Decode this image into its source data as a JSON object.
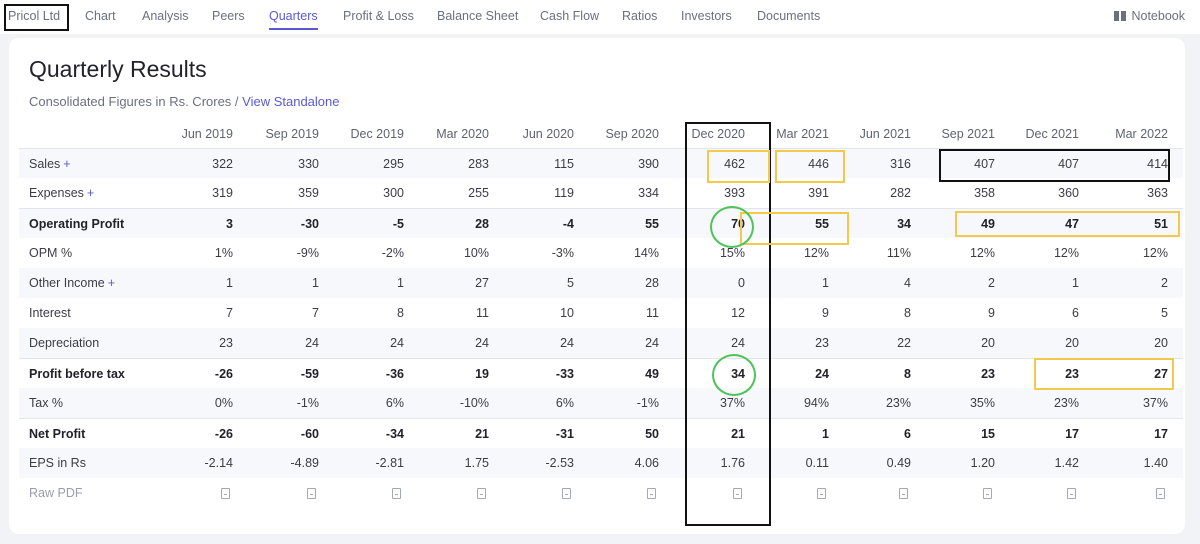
{
  "nav": {
    "brand": "Pricol Ltd",
    "items": [
      "Chart",
      "Analysis",
      "Peers",
      "Quarters",
      "Profit & Loss",
      "Balance Sheet",
      "Cash Flow",
      "Ratios",
      "Investors",
      "Documents"
    ],
    "active": "Quarters",
    "notebook_label": "Notebook",
    "notebook_icon": "book-icon",
    "accent_color": "#5959d6"
  },
  "card": {
    "title": "Quarterly Results",
    "subtitle": "Consolidated Figures in Rs. Crores / ",
    "subtitle_link": "View Standalone"
  },
  "table": {
    "columns": [
      "Jun 2019",
      "Sep 2019",
      "Dec 2019",
      "Mar 2020",
      "Jun 2020",
      "Sep 2020",
      "Dec 2020",
      "Mar 2021",
      "Jun 2021",
      "Sep 2021",
      "Dec 2021",
      "Mar 2022"
    ],
    "rows": [
      {
        "label": "Sales",
        "plus": "+",
        "values": [
          "322",
          "330",
          "295",
          "283",
          "115",
          "390",
          "462",
          "446",
          "316",
          "407",
          "407",
          "414"
        ]
      },
      {
        "label": "Expenses",
        "plus": "+",
        "values": [
          "319",
          "359",
          "300",
          "255",
          "119",
          "334",
          "393",
          "391",
          "282",
          "358",
          "360",
          "363"
        ]
      },
      {
        "label": "Operating Profit",
        "bold": true,
        "values": [
          "3",
          "-30",
          "-5",
          "28",
          "-4",
          "55",
          "70",
          "55",
          "34",
          "49",
          "47",
          "51"
        ]
      },
      {
        "label": "OPM %",
        "values": [
          "1%",
          "-9%",
          "-2%",
          "10%",
          "-3%",
          "14%",
          "15%",
          "12%",
          "11%",
          "12%",
          "12%",
          "12%"
        ]
      },
      {
        "label": "Other Income",
        "plus": "+",
        "values": [
          "1",
          "1",
          "1",
          "27",
          "5",
          "28",
          "0",
          "1",
          "4",
          "2",
          "1",
          "2"
        ]
      },
      {
        "label": "Interest",
        "values": [
          "7",
          "7",
          "8",
          "11",
          "10",
          "11",
          "12",
          "9",
          "8",
          "9",
          "6",
          "5"
        ]
      },
      {
        "label": "Depreciation",
        "values": [
          "23",
          "24",
          "24",
          "24",
          "24",
          "24",
          "24",
          "23",
          "22",
          "20",
          "20",
          "20"
        ]
      },
      {
        "label": "Profit before tax",
        "bold": true,
        "values": [
          "-26",
          "-59",
          "-36",
          "19",
          "-33",
          "49",
          "34",
          "24",
          "8",
          "23",
          "23",
          "27"
        ]
      },
      {
        "label": "Tax %",
        "values": [
          "0%",
          "-1%",
          "6%",
          "-10%",
          "6%",
          "-1%",
          "37%",
          "94%",
          "23%",
          "35%",
          "23%",
          "37%"
        ]
      },
      {
        "label": "Net Profit",
        "bold": true,
        "values": [
          "-26",
          "-60",
          "-34",
          "21",
          "-31",
          "50",
          "21",
          "1",
          "6",
          "15",
          "17",
          "17"
        ]
      },
      {
        "label": "EPS in Rs",
        "values": [
          "-2.14",
          "-4.89",
          "-2.81",
          "1.75",
          "-2.53",
          "4.06",
          "1.76",
          "0.11",
          "0.49",
          "1.20",
          "1.42",
          "1.40"
        ]
      }
    ],
    "raw_pdf_label": "Raw PDF",
    "raw_pdf_icon": "pdf-icon"
  },
  "annotation_colors": {
    "black": "#111111",
    "yellow": "#f2c94c",
    "green": "#4fc35a"
  }
}
